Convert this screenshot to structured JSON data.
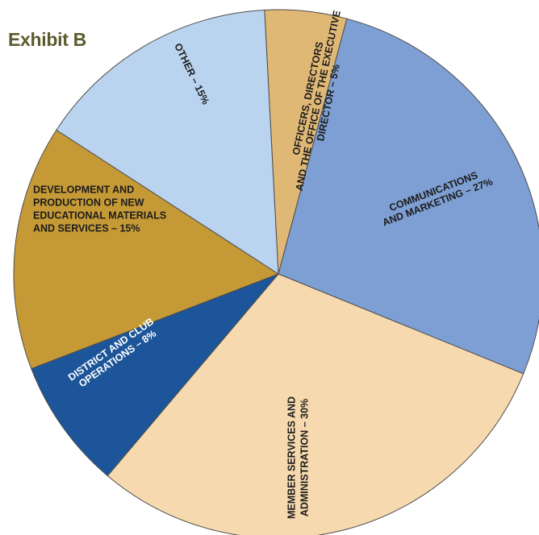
{
  "chart_data": {
    "type": "pie",
    "title": "Exhibit B",
    "slices": [
      {
        "label": [
          "OFFICERS, DIRECTORS",
          "AND THE OFFICE OF THE EXECUTIVE",
          "DIRECTOR – 5%"
        ],
        "value": 5,
        "color": "#e0b876",
        "text_color": "#1c1c1c"
      },
      {
        "label": [
          "COMMUNICATIONS",
          "AND MARKETING – 27%"
        ],
        "value": 27,
        "color": "#7e9fd3",
        "text_color": "#1c1c1c"
      },
      {
        "label": [
          "MEMBER SERVICES AND",
          "ADMINISTRATION – 30%"
        ],
        "value": 30,
        "color": "#f6d9ae",
        "text_color": "#1c1c1c"
      },
      {
        "label": [
          "DISTRICT AND CLUB",
          "OPERATIONS – 8%"
        ],
        "value": 8,
        "color": "#1c5599",
        "text_color": "#ffffff"
      },
      {
        "label": [
          "DEVELOPMENT AND",
          "PRODUCTION OF NEW",
          "EDUCATIONAL MATERIALS",
          "AND SERVICES – 15%"
        ],
        "value": 15,
        "color": "#c59a36",
        "text_color": "#1c1c1c"
      },
      {
        "label": [
          "OTHER – 15%"
        ],
        "value": 15,
        "color": "#bad3ee",
        "text_color": "#1c1c1c"
      }
    ]
  }
}
